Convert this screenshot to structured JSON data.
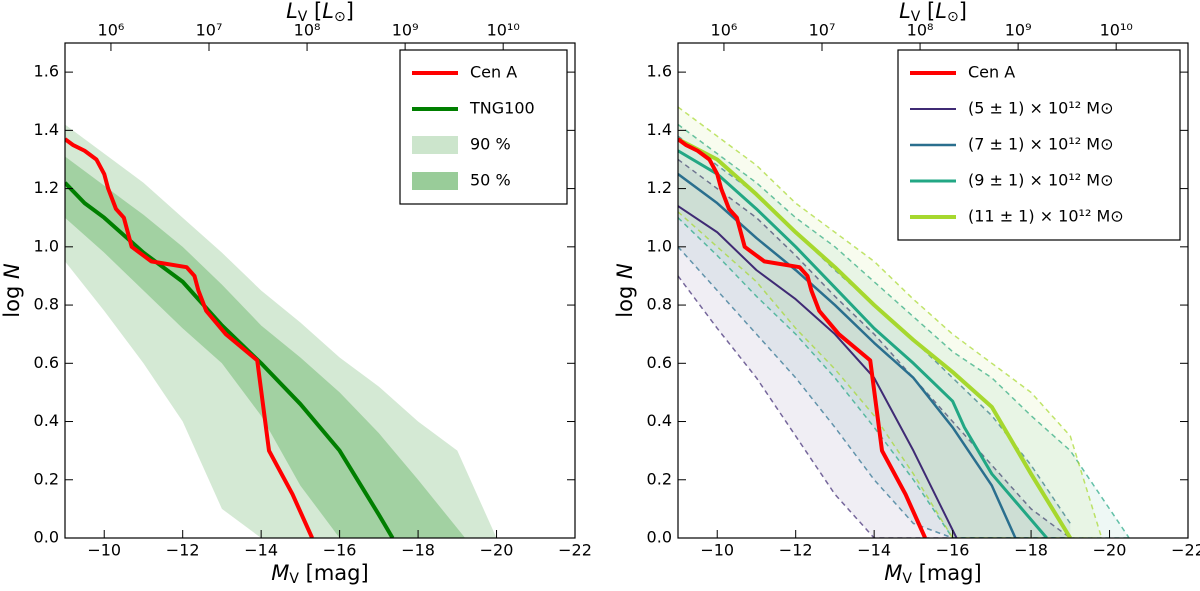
{
  "chart_data": [
    {
      "type": "line",
      "x_label": [
        "M",
        "V",
        " [mag]"
      ],
      "y_label": [
        "log ",
        "N"
      ],
      "top_label": [
        "L",
        "V",
        " [",
        "L",
        "⊙",
        "]"
      ],
      "xlim": [
        -9,
        -22
      ],
      "ylim": [
        0,
        1.7
      ],
      "xticks": [
        {
          "value": -10,
          "label": "−10"
        },
        {
          "value": -12,
          "label": "−12"
        },
        {
          "value": -14,
          "label": "−14"
        },
        {
          "value": -16,
          "label": "−16"
        },
        {
          "value": -18,
          "label": "−18"
        },
        {
          "value": -20,
          "label": "−20"
        },
        {
          "value": -22,
          "label": "−22"
        }
      ],
      "yticks": [
        {
          "value": 0,
          "label": "0.0"
        },
        0.2,
        0.4,
        0.6,
        0.8,
        {
          "value": 1,
          "label": "1.0"
        },
        1.2,
        1.4,
        1.6
      ],
      "x2lim": [
        340000,
        54000000000
      ],
      "x2scale": "log",
      "x2ticks": [
        {
          "value": 1000000,
          "label": "10⁶"
        },
        {
          "value": 10000000,
          "label": "10⁷"
        },
        {
          "value": 100000000,
          "label": "10⁸"
        },
        {
          "value": 1000000000,
          "label": "10⁹"
        },
        {
          "value": 10000000000,
          "label": "10¹⁰"
        }
      ],
      "legend": "upper right",
      "bands": [
        {
          "name": "90 %",
          "color": "#cce5cc",
          "x": [
            -9,
            -10,
            -11,
            -12,
            -13,
            -14,
            -15,
            -16,
            -17,
            -18,
            -19,
            -20
          ],
          "upper": [
            1.42,
            1.32,
            1.22,
            1.1,
            0.98,
            0.85,
            0.74,
            0.62,
            0.52,
            0.4,
            0.3,
            0
          ],
          "lower": [
            0.95,
            0.78,
            0.6,
            0.4,
            0.1,
            0,
            0,
            0,
            0,
            0,
            0,
            0
          ]
        },
        {
          "name": "50 %",
          "color": "#99cc99",
          "x": [
            -9,
            -10,
            -11,
            -12,
            -13,
            -14,
            -15,
            -16,
            -17,
            -18,
            -19.2
          ],
          "upper": [
            1.31,
            1.21,
            1.11,
            1.0,
            0.87,
            0.73,
            0.62,
            0.5,
            0.36,
            0.2,
            0
          ],
          "lower": [
            1.1,
            0.98,
            0.85,
            0.72,
            0.6,
            0.42,
            0.18,
            0,
            0,
            0,
            0
          ]
        }
      ],
      "series": [
        {
          "name": "Cen A",
          "color": "#ff0000",
          "linewidth": 4,
          "x": [
            -9,
            -9.2,
            -9.5,
            -9.8,
            -10,
            -10.1,
            -10.3,
            -10.5,
            -10.6,
            -10.7,
            -11,
            -11.2,
            -12.1,
            -12.3,
            -12.4,
            -12.6,
            -13.1,
            -13.9,
            -14.2,
            -14.8,
            -15.3
          ],
          "values": [
            1.37,
            1.35,
            1.33,
            1.3,
            1.25,
            1.2,
            1.13,
            1.1,
            1.05,
            1.0,
            0.97,
            0.95,
            0.93,
            0.9,
            0.85,
            0.78,
            0.7,
            0.61,
            0.3,
            0.15,
            0
          ]
        },
        {
          "name": "TNG100",
          "color": "#007f00",
          "linewidth": 4,
          "x": [
            -9,
            -9.5,
            -10,
            -11,
            -12,
            -13,
            -14,
            -15,
            -16,
            -17,
            -17.35
          ],
          "values": [
            1.22,
            1.15,
            1.1,
            0.98,
            0.88,
            0.73,
            0.6,
            0.46,
            0.3,
            0.08,
            0
          ]
        }
      ]
    },
    {
      "type": "line",
      "x_label": [
        "M",
        "V",
        " [mag]"
      ],
      "y_label": [
        "log ",
        "N"
      ],
      "top_label": [
        "L",
        "V",
        " [",
        "L",
        "⊙",
        "]"
      ],
      "xlim": [
        -9,
        -22
      ],
      "ylim": [
        0,
        1.7
      ],
      "xticks": [
        {
          "value": -10,
          "label": "−10"
        },
        {
          "value": -12,
          "label": "−12"
        },
        {
          "value": -14,
          "label": "−14"
        },
        {
          "value": -16,
          "label": "−16"
        },
        {
          "value": -18,
          "label": "−18"
        },
        {
          "value": -20,
          "label": "−20"
        },
        {
          "value": -22,
          "label": "−22"
        }
      ],
      "yticks": [
        {
          "value": 0,
          "label": "0.0"
        },
        0.2,
        0.4,
        0.6,
        0.8,
        {
          "value": 1,
          "label": "1.0"
        },
        1.2,
        1.4,
        1.6
      ],
      "x2lim": [
        340000,
        54000000000
      ],
      "x2scale": "log",
      "x2ticks": [
        {
          "value": 1000000,
          "label": "10⁶"
        },
        {
          "value": 10000000,
          "label": "10⁷"
        },
        {
          "value": 100000000,
          "label": "10⁸"
        },
        {
          "value": 1000000000,
          "label": "10⁹"
        },
        {
          "value": 10000000000,
          "label": "10¹⁰"
        }
      ],
      "legend": "upper right",
      "bands": [
        {
          "color": "#3f2a74",
          "dashed": true,
          "x": [
            -9,
            -10,
            -11,
            -12,
            -13,
            -14,
            -15,
            -16,
            -17,
            -18,
            -19
          ],
          "upper": [
            1.3,
            1.2,
            1.1,
            0.97,
            0.83,
            0.7,
            0.55,
            0.4,
            0.25,
            0.1,
            0
          ],
          "lower": [
            0.9,
            0.72,
            0.55,
            0.35,
            0.15,
            0,
            0,
            0,
            0,
            0,
            0
          ]
        },
        {
          "color": "#2a6f8e",
          "dashed": true,
          "x": [
            -9,
            -10,
            -11,
            -12,
            -13,
            -14,
            -15,
            -16,
            -17,
            -18,
            -19
          ],
          "upper": [
            1.38,
            1.28,
            1.18,
            1.05,
            0.92,
            0.8,
            0.68,
            0.55,
            0.42,
            0.25,
            0.05
          ],
          "lower": [
            1.0,
            0.85,
            0.7,
            0.55,
            0.38,
            0.2,
            0.05,
            0,
            0,
            0,
            0
          ]
        },
        {
          "color": "#22a784",
          "dashed": true,
          "x": [
            -9,
            -10,
            -11,
            -12,
            -13,
            -14,
            -15,
            -16,
            -17,
            -18,
            -19,
            -20,
            -20.5
          ],
          "upper": [
            1.42,
            1.32,
            1.22,
            1.1,
            1.0,
            0.88,
            0.76,
            0.64,
            0.55,
            0.42,
            0.3,
            0.1,
            0
          ],
          "lower": [
            1.1,
            0.97,
            0.83,
            0.7,
            0.55,
            0.38,
            0.2,
            0,
            0,
            0,
            0,
            0,
            0
          ]
        },
        {
          "color": "#a6d82e",
          "dashed": true,
          "x": [
            -9,
            -10,
            -11,
            -12,
            -13,
            -14,
            -15,
            -16,
            -17,
            -18,
            -19,
            -19.8
          ],
          "upper": [
            1.48,
            1.38,
            1.28,
            1.15,
            1.05,
            0.95,
            0.82,
            0.7,
            0.6,
            0.5,
            0.35,
            0
          ],
          "lower": [
            1.12,
            1.0,
            0.88,
            0.72,
            0.58,
            0.42,
            0.22,
            0,
            0,
            0,
            0,
            0
          ]
        }
      ],
      "series": [
        {
          "name": "Cen A",
          "color": "#ff0000",
          "linewidth": 4,
          "x": [
            -9,
            -9.2,
            -9.5,
            -9.8,
            -10,
            -10.1,
            -10.3,
            -10.5,
            -10.6,
            -10.7,
            -11,
            -11.2,
            -12.1,
            -12.3,
            -12.4,
            -12.6,
            -13.1,
            -13.9,
            -14.2,
            -14.8,
            -15.3
          ],
          "values": [
            1.37,
            1.35,
            1.33,
            1.3,
            1.25,
            1.2,
            1.13,
            1.1,
            1.05,
            1.0,
            0.97,
            0.95,
            0.93,
            0.9,
            0.85,
            0.78,
            0.7,
            0.61,
            0.3,
            0.15,
            0
          ]
        },
        {
          "name": "(5 ± 1) × 10¹² M⊙",
          "color": "#3f2a74",
          "linewidth": 2,
          "x": [
            -9,
            -10,
            -11,
            -12,
            -13,
            -14,
            -15,
            -16.1
          ],
          "values": [
            1.14,
            1.05,
            0.92,
            0.82,
            0.7,
            0.55,
            0.3,
            0
          ]
        },
        {
          "name": "(7 ± 1) × 10¹² M⊙",
          "color": "#2a6f8e",
          "linewidth": 2.5,
          "x": [
            -9,
            -10,
            -11,
            -12,
            -13,
            -14,
            -15,
            -16,
            -17,
            -17.6
          ],
          "values": [
            1.25,
            1.15,
            1.03,
            0.92,
            0.8,
            0.67,
            0.55,
            0.38,
            0.18,
            0
          ]
        },
        {
          "name": "(9 ± 1) × 10¹² M⊙",
          "color": "#22a784",
          "linewidth": 3,
          "x": [
            -9,
            -10,
            -11,
            -12,
            -13,
            -14,
            -15,
            -16,
            -16.3,
            -17,
            -18.4
          ],
          "values": [
            1.33,
            1.25,
            1.13,
            1.0,
            0.86,
            0.72,
            0.6,
            0.47,
            0.38,
            0.22,
            0
          ]
        },
        {
          "name": "(11 ± 1) × 10¹² M⊙",
          "color": "#a6d82e",
          "linewidth": 4,
          "x": [
            -9,
            -10,
            -11,
            -12,
            -13,
            -14,
            -15,
            -16,
            -17,
            -18,
            -19
          ],
          "values": [
            1.37,
            1.3,
            1.18,
            1.05,
            0.93,
            0.8,
            0.68,
            0.57,
            0.45,
            0.22,
            0
          ]
        }
      ]
    }
  ]
}
